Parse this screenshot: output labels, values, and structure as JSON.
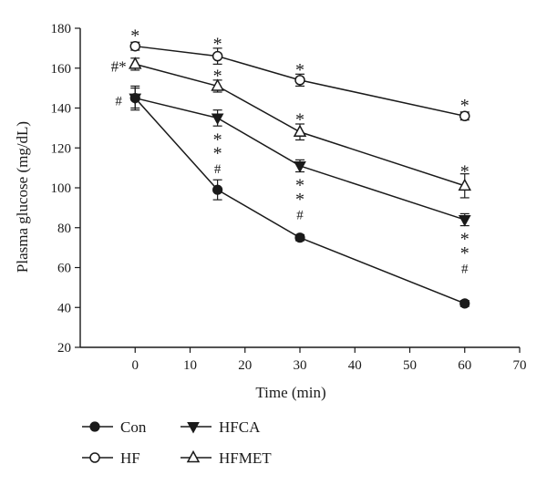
{
  "chart_data": {
    "type": "line",
    "xlabel": "Time (min)",
    "ylabel": "Plasma glucose (mg/dL)",
    "xlim": [
      -10,
      70
    ],
    "ylim": [
      20,
      180
    ],
    "xticks": [
      0,
      10,
      20,
      30,
      40,
      50,
      60,
      70
    ],
    "yticks": [
      20,
      40,
      60,
      80,
      100,
      120,
      140,
      160,
      180
    ],
    "grid": false,
    "legend_position": "bottom-left",
    "x": [
      0,
      15,
      30,
      60
    ],
    "series": [
      {
        "name": "Con",
        "marker": "filled-circle",
        "values": [
          145,
          99,
          75,
          42
        ],
        "errors": [
          6,
          5,
          1.5,
          1.5
        ]
      },
      {
        "name": "HF",
        "marker": "open-circle",
        "values": [
          171,
          166,
          154,
          136
        ],
        "errors": [
          2,
          4,
          3,
          2
        ]
      },
      {
        "name": "HFCA",
        "marker": "filled-triangle-down",
        "values": [
          145,
          135,
          111,
          84
        ],
        "errors": [
          5,
          4,
          3,
          3
        ]
      },
      {
        "name": "HFMET",
        "marker": "open-triangle-up",
        "values": [
          162,
          151,
          128,
          101
        ],
        "errors": [
          3,
          3,
          4,
          6
        ]
      }
    ],
    "annotations": [
      {
        "text": "*",
        "x": 0,
        "y": 177
      },
      {
        "text": "#*",
        "x": -3,
        "y": 162
      },
      {
        "text": "#",
        "x": -3,
        "y": 145
      },
      {
        "text": "*",
        "x": 15,
        "y": 173
      },
      {
        "text": "*",
        "x": 15,
        "y": 157
      },
      {
        "text": "*",
        "x": 15,
        "y": 125
      },
      {
        "text": "*",
        "x": 15,
        "y": 118
      },
      {
        "text": "#",
        "x": 15,
        "y": 111
      },
      {
        "text": "*",
        "x": 30,
        "y": 160
      },
      {
        "text": "*",
        "x": 30,
        "y": 135
      },
      {
        "text": "*",
        "x": 30,
        "y": 102
      },
      {
        "text": "*",
        "x": 30,
        "y": 95
      },
      {
        "text": "#",
        "x": 30,
        "y": 88
      },
      {
        "text": "*",
        "x": 60,
        "y": 142
      },
      {
        "text": "*",
        "x": 60,
        "y": 109
      },
      {
        "text": "*",
        "x": 60,
        "y": 75
      },
      {
        "text": "*",
        "x": 60,
        "y": 68
      },
      {
        "text": "#",
        "x": 60,
        "y": 61
      }
    ]
  }
}
